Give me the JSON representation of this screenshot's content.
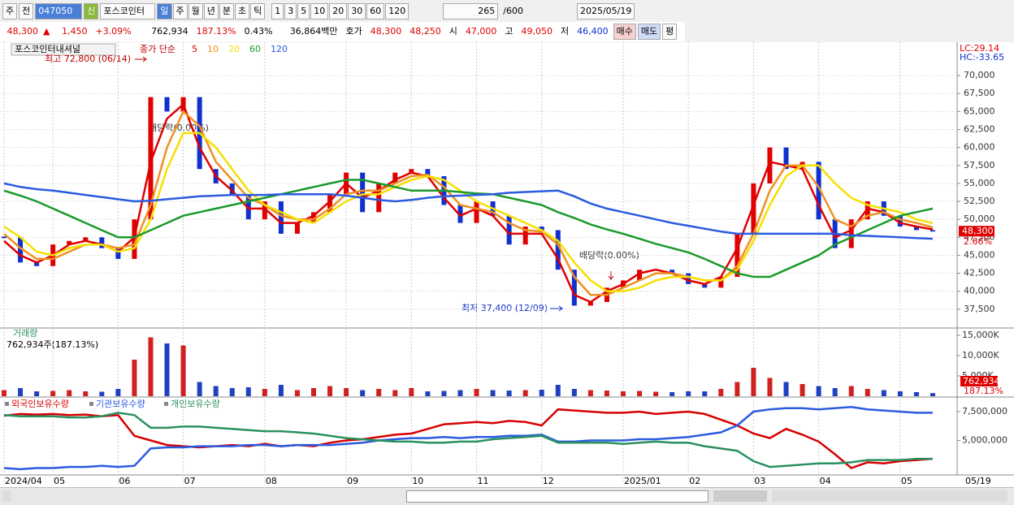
{
  "toolbar": {
    "market": "주",
    "all": "전",
    "code": "047050",
    "new": "신",
    "name": "포스코인터",
    "periods": [
      "일",
      "주",
      "월",
      "년",
      "분",
      "초",
      "틱"
    ],
    "intervals": [
      "1",
      "3",
      "5",
      "10",
      "20",
      "30",
      "60",
      "120"
    ],
    "count": "265",
    "max": "/600",
    "date": "2025/05/19"
  },
  "quote": {
    "price": "48,300",
    "arrow": "▲",
    "change": "1,450",
    "rate": "+3.09%",
    "volume": "762,934",
    "volume_rate": "187.13%",
    "turnover": "0.43%",
    "amount": "36,864백만",
    "bid_label": "호가",
    "ask": "48,300",
    "bid": "48,250",
    "open_label": "시",
    "open": "47,000",
    "high_label": "고",
    "high": "49,050",
    "low_label": "저",
    "low": "46,400",
    "buy": "매수",
    "sell": "매도",
    "avg": "평"
  },
  "chart_data": [
    {
      "type": "candle-line",
      "title": "포스코인터내셔널",
      "legend_title": "종가 단순",
      "lc": "LC:29.14",
      "hc": "HC:-33.65",
      "last_label": "48,300",
      "last_change": "2.66%",
      "annotations": [
        "최고 72,800 (06/14)",
        "배당락(0.00%)",
        "배당락(0.00%)",
        "최저 37,400 (12/09)"
      ],
      "categories": [
        "2024/04",
        null,
        null,
        "05",
        null,
        null,
        null,
        "06",
        null,
        null,
        null,
        "07",
        null,
        null,
        null,
        null,
        "08",
        null,
        null,
        null,
        null,
        "09",
        null,
        null,
        null,
        "10",
        null,
        null,
        null,
        "11",
        null,
        null,
        null,
        "12",
        null,
        null,
        null,
        null,
        "2025/01",
        null,
        null,
        null,
        "02",
        null,
        null,
        null,
        "03",
        null,
        null,
        null,
        "04",
        null,
        null,
        null,
        null,
        "05",
        null,
        "05/19"
      ],
      "ylim": [
        35000,
        74300
      ],
      "yticks": [
        {
          "value": 37500,
          "label": "37,500"
        },
        {
          "value": 40000,
          "label": "40,000"
        },
        {
          "value": 42500,
          "label": "42,500"
        },
        {
          "value": 45000,
          "label": "45,000"
        },
        {
          "value": 47500,
          "label": "47,500"
        },
        {
          "value": 50000,
          "label": "50,000"
        },
        {
          "value": 52500,
          "label": "52,500"
        },
        {
          "value": 55000,
          "label": "55,000"
        },
        {
          "value": 57500,
          "label": "57,500"
        },
        {
          "value": 60000,
          "label": "60,000"
        },
        {
          "value": 62500,
          "label": "62,500"
        },
        {
          "value": 65000,
          "label": "65,000"
        },
        {
          "value": 67500,
          "label": "67,500"
        },
        {
          "value": 70000,
          "label": "70,000"
        }
      ],
      "grid": true,
      "series": [
        {
          "up_color": "#e00000",
          "down_color": "#1030d0",
          "values": [
            47500,
            44000,
            43500,
            46500,
            47000,
            47500,
            46000,
            44500,
            50000,
            67000,
            65000,
            67000,
            57000,
            55000,
            53500,
            50000,
            52500,
            48000,
            49500,
            51000,
            53500,
            56500,
            51000,
            55000,
            56500,
            57000,
            56000,
            52000,
            49500,
            52500,
            50500,
            46500,
            49000,
            48500,
            43000,
            38000,
            38500,
            40500,
            41500,
            43000,
            43000,
            42500,
            41000,
            40500,
            42000,
            48000,
            55000,
            60000,
            57000,
            58000,
            50000,
            46000,
            50000,
            52500,
            50500,
            49000,
            48500,
            48300
          ]
        },
        {
          "name": "5",
          "color": "#e00000",
          "values": [
            47000,
            45000,
            44000,
            45000,
            46500,
            47000,
            46500,
            45500,
            47500,
            58000,
            64000,
            66000,
            60000,
            56000,
            54000,
            51500,
            51500,
            49500,
            49500,
            50500,
            52500,
            55000,
            53000,
            54000,
            55500,
            56500,
            56000,
            53000,
            50500,
            51500,
            50500,
            48000,
            48000,
            48000,
            44500,
            39500,
            38500,
            40000,
            41000,
            42500,
            43000,
            42500,
            41500,
            41000,
            42000,
            46000,
            52000,
            58000,
            57500,
            57000,
            52000,
            47500,
            48500,
            51500,
            51000,
            49500,
            49000,
            48600
          ]
        },
        {
          "name": "10",
          "color": "#f09020",
          "values": [
            48000,
            46000,
            44500,
            44500,
            45500,
            46500,
            46500,
            46000,
            46500,
            52000,
            60000,
            65000,
            63000,
            58000,
            55500,
            53000,
            52000,
            50500,
            50000,
            50000,
            51500,
            53500,
            54000,
            54000,
            55000,
            56000,
            56200,
            54500,
            52000,
            51500,
            51000,
            49500,
            48500,
            48300,
            46500,
            42000,
            39500,
            39500,
            40500,
            41500,
            42500,
            42500,
            42000,
            41500,
            41500,
            43500,
            48000,
            54000,
            57500,
            57500,
            54500,
            50000,
            49000,
            50500,
            51000,
            50000,
            49500,
            48900
          ]
        },
        {
          "name": "20",
          "color": "#f5e000",
          "values": [
            49000,
            47500,
            45500,
            45000,
            46000,
            46500,
            46500,
            45500,
            46000,
            50000,
            57000,
            62000,
            62000,
            60000,
            57000,
            54000,
            52000,
            51000,
            50000,
            49500,
            51000,
            52500,
            53500,
            53500,
            54500,
            55500,
            56000,
            55500,
            54000,
            52500,
            51500,
            50500,
            49500,
            48500,
            47000,
            44000,
            41500,
            40000,
            40000,
            40500,
            41500,
            42000,
            42000,
            41500,
            41500,
            43000,
            47000,
            52000,
            56000,
            57500,
            57500,
            55000,
            53000,
            52000,
            51500,
            51000,
            50000,
            49500
          ]
        },
        {
          "name": "60",
          "color": "#1a9a2a",
          "values": [
            54000,
            53300,
            52500,
            51500,
            50500,
            49500,
            48500,
            47500,
            47500,
            48500,
            49500,
            50500,
            51000,
            51500,
            52000,
            52500,
            53000,
            53500,
            54000,
            54500,
            55000,
            55500,
            55500,
            55000,
            54500,
            54000,
            54000,
            54000,
            53800,
            53600,
            53500,
            53000,
            52500,
            52000,
            51000,
            50200,
            49300,
            48600,
            48000,
            47300,
            46600,
            46000,
            45400,
            44500,
            43500,
            42500,
            42000,
            42000,
            43000,
            44000,
            45000,
            46500,
            47500,
            48500,
            49500,
            50500,
            51000,
            51500
          ]
        },
        {
          "name": "120",
          "color": "#2a5be0",
          "values": [
            55000,
            54500,
            54200,
            54000,
            53700,
            53400,
            53100,
            52800,
            52500,
            52600,
            52800,
            53000,
            53200,
            53300,
            53400,
            53400,
            53400,
            53500,
            53500,
            53500,
            53500,
            53300,
            53000,
            52700,
            52500,
            52700,
            53000,
            53200,
            53300,
            53400,
            53500,
            53700,
            53800,
            53900,
            54000,
            53200,
            52200,
            51500,
            51000,
            50500,
            50000,
            49500,
            49100,
            48700,
            48300,
            48000,
            48000,
            48000,
            48000,
            48000,
            48000,
            48000,
            47800,
            47700,
            47600,
            47500,
            47400,
            47300
          ]
        }
      ]
    },
    {
      "type": "bar",
      "title": "거래량",
      "subtitle": "762,934주(187.13%)",
      "last_label": "762,934",
      "last_rate": "187.13%",
      "ylim": [
        0,
        16600000
      ],
      "yticks": [
        {
          "value": 5000000,
          "label": "5,000K"
        },
        {
          "value": 10000000,
          "label": "10,000K"
        },
        {
          "value": 15000000,
          "label": "15,000K"
        }
      ],
      "values": [
        1500000,
        2000000,
        1200000,
        1300000,
        1500000,
        1200000,
        1100000,
        1800000,
        9000000,
        14500000,
        13000000,
        12500000,
        3500000,
        2500000,
        2000000,
        2200000,
        1800000,
        2800000,
        1500000,
        2000000,
        2500000,
        2000000,
        1500000,
        1800000,
        1500000,
        2000000,
        1200000,
        1300000,
        1500000,
        1800000,
        1500000,
        1400000,
        1500000,
        1600000,
        2800000,
        1800000,
        1500000,
        1400000,
        1200000,
        1300000,
        1100000,
        1000000,
        1200000,
        1200000,
        1800000,
        3500000,
        7000000,
        4500000,
        3500000,
        3000000,
        2500000,
        2000000,
        2500000,
        1800000,
        1500000,
        1200000,
        1000000,
        762934
      ]
    },
    {
      "type": "line",
      "ylim": [
        2000000,
        8700000
      ],
      "yticks": [
        {
          "value": 5000000,
          "label": "5,000,000"
        },
        {
          "value": 7500000,
          "label": "7,500,000"
        }
      ],
      "series": [
        {
          "name": "외국인보유수량",
          "color": "#d80000",
          "values": [
            7150000,
            7300000,
            7250000,
            7300000,
            7200000,
            7250000,
            7100000,
            7200000,
            5400000,
            5000000,
            4600000,
            4500000,
            4400000,
            4500000,
            4600000,
            4500000,
            4700000,
            4500000,
            4600000,
            4500000,
            4800000,
            5000000,
            5100000,
            5300000,
            5500000,
            5600000,
            6000000,
            6400000,
            6500000,
            6600000,
            6500000,
            6700000,
            6600000,
            6300000,
            7700000,
            7600000,
            7500000,
            7400000,
            7400000,
            7500000,
            7300000,
            7400000,
            7500000,
            7300000,
            6800000,
            6300000,
            5600000,
            5200000,
            6000000,
            5500000,
            4900000,
            3800000,
            2600000,
            3100000,
            3000000,
            3200000,
            3300000,
            3400000
          ]
        },
        {
          "name": "기관보유수량",
          "color": "#2a5be0",
          "values": [
            2600000,
            2500000,
            2600000,
            2600000,
            2700000,
            2700000,
            2800000,
            2700000,
            2800000,
            4300000,
            4400000,
            4400000,
            4500000,
            4500000,
            4500000,
            4600000,
            4600000,
            4500000,
            4600000,
            4600000,
            4600000,
            4700000,
            4800000,
            5000000,
            5100000,
            5200000,
            5200000,
            5300000,
            5200000,
            5300000,
            5300000,
            5400000,
            5400000,
            5500000,
            4900000,
            4900000,
            5000000,
            5000000,
            5000000,
            5100000,
            5100000,
            5200000,
            5300000,
            5500000,
            5700000,
            6300000,
            7500000,
            7700000,
            7800000,
            7800000,
            7700000,
            7800000,
            7900000,
            7700000,
            7600000,
            7500000,
            7400000,
            7400000
          ]
        },
        {
          "name": "개인보유수량",
          "color": "#2a9060",
          "values": [
            7200000,
            7100000,
            7100000,
            7100000,
            7000000,
            7000000,
            7100000,
            7400000,
            7200000,
            6100000,
            6100000,
            6200000,
            6200000,
            6100000,
            6000000,
            5900000,
            5800000,
            5800000,
            5700000,
            5600000,
            5400000,
            5200000,
            5100000,
            5000000,
            4900000,
            4900000,
            4800000,
            4800000,
            4900000,
            4900000,
            5100000,
            5200000,
            5300000,
            5400000,
            4800000,
            4800000,
            4800000,
            4800000,
            4700000,
            4800000,
            4900000,
            4800000,
            4800000,
            4500000,
            4300000,
            4100000,
            3200000,
            2700000,
            2800000,
            2900000,
            3000000,
            3000000,
            3100000,
            3300000,
            3300000,
            3300000,
            3400000,
            3400000
          ]
        }
      ]
    }
  ]
}
